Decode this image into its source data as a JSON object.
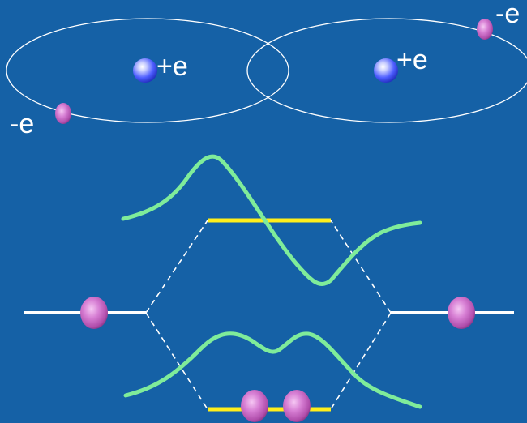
{
  "atoms": {
    "left": {
      "nucleus_label": "+e",
      "electron_label": "-e"
    },
    "right": {
      "nucleus_label": "+e",
      "electron_label": "-e"
    }
  },
  "colors": {
    "background": "#1561a6",
    "orbit": "#ffffff",
    "nucleus": "#4d5dff",
    "electron": "#c25ac0",
    "atomic_level": "#ffffff",
    "molecular_level": "#ffee1a",
    "wavefunction": "#7fec9a",
    "connector": "#ffffff"
  },
  "energy_diagram": {
    "left_atomic_level_electrons": 1,
    "right_atomic_level_electrons": 1,
    "antibonding_level_electrons": 0,
    "bonding_level_electrons": 2
  }
}
